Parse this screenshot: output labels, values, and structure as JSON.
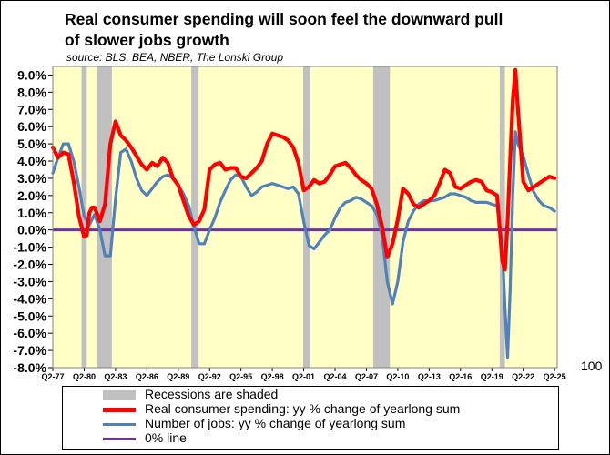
{
  "title_line1": "Real consumer spending will soon feel the downward pull",
  "title_line2": "of slower jobs growth",
  "source": "source: BLS, BEA, NBER, The Lonski Group",
  "side_number": "100",
  "colors": {
    "plot_bg": "#ffffc6",
    "recession": "#c0c0c0",
    "spending": "#ff0000",
    "jobs": "#4f81bd",
    "zero_line": "#7030a0"
  },
  "legend": {
    "recession": "Recessions are shaded",
    "spending": "Real consumer spending: yy % change of yearlong sum",
    "jobs": "Number of jobs: yy % change of yearlong sum",
    "zero": "0% line"
  },
  "chart_data": {
    "type": "line",
    "title": "Real consumer spending will soon feel the downward pull of slower jobs growth",
    "x_range": [
      1977.25,
      2025.5
    ],
    "ylim": [
      -8,
      9.5
    ],
    "yticks": [
      9,
      8,
      7,
      6,
      5,
      4,
      3,
      2,
      1,
      0,
      -1,
      -2,
      -3,
      -4,
      -5,
      -6,
      -7,
      -8
    ],
    "ytick_labels": [
      "9.0%",
      "8.0%",
      "7.0%",
      "6.0%",
      "5.0%",
      "4.0%",
      "3.0%",
      "2.0%",
      "1.0%",
      "0.0%",
      "-1.0%",
      "-2.0%",
      "-3.0%",
      "-4.0%",
      "-5.0%",
      "-6.0%",
      "-7.0%",
      "-8.0%"
    ],
    "xticks": [
      1977.25,
      1980.25,
      1983.25,
      1986.25,
      1989.25,
      1992.25,
      1995.25,
      1998.25,
      2001.25,
      2004.25,
      2007.25,
      2010.25,
      2013.25,
      2016.25,
      2019.25,
      2022.25,
      2025.25
    ],
    "xtick_labels": [
      "Q2-77",
      "Q2-80",
      "Q2-83",
      "Q2-86",
      "Q2-89",
      "Q2-92",
      "Q2-95",
      "Q2-98",
      "Q2-01",
      "Q2-04",
      "Q2-07",
      "Q2-10",
      "Q2-13",
      "Q2-16",
      "Q2-19",
      "Q2-22",
      "Q2-25"
    ],
    "recessions": [
      [
        1980.0,
        1980.5
      ],
      [
        1981.5,
        1982.9
      ],
      [
        1990.5,
        1991.2
      ],
      [
        2001.2,
        2001.9
      ],
      [
        2007.9,
        2009.5
      ],
      [
        2020.0,
        2020.5
      ]
    ],
    "series": [
      {
        "name": "Real consumer spending: yy % change of yearlong sum",
        "x": [
          1977.25,
          1977.75,
          1978.25,
          1978.75,
          1979.25,
          1979.75,
          1980.25,
          1980.5,
          1980.75,
          1981.0,
          1981.25,
          1981.75,
          1982.25,
          1982.75,
          1983.25,
          1983.75,
          1984.25,
          1984.75,
          1985.25,
          1985.75,
          1986.25,
          1986.75,
          1987.25,
          1987.75,
          1988.25,
          1988.75,
          1989.25,
          1989.75,
          1990.25,
          1990.75,
          1991.25,
          1991.75,
          1992.25,
          1992.75,
          1993.25,
          1993.75,
          1994.25,
          1994.75,
          1995.25,
          1995.75,
          1996.25,
          1996.75,
          1997.25,
          1997.75,
          1998.25,
          1998.75,
          1999.25,
          1999.75,
          2000.25,
          2000.75,
          2001.25,
          2001.75,
          2002.25,
          2002.75,
          2003.25,
          2003.75,
          2004.25,
          2004.75,
          2005.25,
          2005.75,
          2006.25,
          2006.75,
          2007.25,
          2007.75,
          2008.25,
          2008.75,
          2009.25,
          2009.75,
          2010.25,
          2010.75,
          2011.25,
          2011.75,
          2012.25,
          2012.75,
          2013.25,
          2013.75,
          2014.25,
          2014.75,
          2015.25,
          2015.75,
          2016.25,
          2016.75,
          2017.25,
          2017.75,
          2018.25,
          2018.75,
          2019.25,
          2019.75,
          2020.25,
          2020.5,
          2020.75,
          2021.0,
          2021.25,
          2021.5,
          2021.75,
          2022.25,
          2022.75,
          2023.25,
          2023.75,
          2024.25,
          2024.75,
          2025.25
        ],
        "values": [
          4.8,
          4.2,
          4.5,
          4.4,
          2.8,
          0.8,
          -0.4,
          -0.3,
          1.0,
          1.3,
          1.3,
          0.5,
          1.5,
          5.0,
          6.3,
          5.5,
          5.2,
          4.8,
          4.3,
          3.8,
          3.5,
          3.9,
          3.7,
          4.2,
          3.9,
          3.0,
          2.6,
          1.7,
          0.8,
          0.3,
          0.5,
          1.2,
          3.5,
          3.8,
          3.9,
          3.5,
          3.6,
          3.6,
          3.1,
          3.0,
          3.3,
          3.6,
          4.0,
          5.0,
          5.6,
          5.5,
          5.4,
          5.2,
          4.8,
          3.9,
          2.3,
          2.5,
          2.9,
          2.7,
          2.8,
          3.2,
          3.7,
          3.8,
          3.9,
          3.6,
          3.2,
          2.9,
          2.7,
          2.4,
          1.5,
          0.2,
          -1.6,
          -0.8,
          0.6,
          2.4,
          2.1,
          1.5,
          1.3,
          1.5,
          1.7,
          2.0,
          2.7,
          3.5,
          3.3,
          2.5,
          2.4,
          2.6,
          2.8,
          2.9,
          2.8,
          2.3,
          2.2,
          2.0,
          -1.8,
          -2.3,
          0.5,
          4.0,
          7.5,
          9.3,
          7.0,
          2.8,
          2.3,
          2.5,
          2.7,
          2.9,
          3.1,
          3.0
        ]
      },
      {
        "name": "Number of jobs: yy % change of yearlong sum",
        "x": [
          1977.25,
          1977.75,
          1978.25,
          1978.75,
          1979.25,
          1979.75,
          1980.25,
          1980.75,
          1981.25,
          1981.75,
          1982.25,
          1982.75,
          1983.25,
          1983.75,
          1984.25,
          1984.75,
          1985.25,
          1985.75,
          1986.25,
          1986.75,
          1987.25,
          1987.75,
          1988.25,
          1988.75,
          1989.25,
          1989.75,
          1990.25,
          1990.75,
          1991.25,
          1991.75,
          1992.25,
          1992.75,
          1993.25,
          1993.75,
          1994.25,
          1994.75,
          1995.25,
          1995.75,
          1996.25,
          1996.75,
          1997.25,
          1997.75,
          1998.25,
          1998.75,
          1999.25,
          1999.75,
          2000.25,
          2000.75,
          2001.25,
          2001.75,
          2002.25,
          2002.75,
          2003.25,
          2003.75,
          2004.25,
          2004.75,
          2005.25,
          2005.75,
          2006.25,
          2006.75,
          2007.25,
          2007.75,
          2008.25,
          2008.75,
          2009.25,
          2009.75,
          2010.25,
          2010.75,
          2011.25,
          2011.75,
          2012.25,
          2012.75,
          2013.25,
          2013.75,
          2014.25,
          2014.75,
          2015.25,
          2015.75,
          2016.25,
          2016.75,
          2017.25,
          2017.75,
          2018.25,
          2018.75,
          2019.25,
          2019.75,
          2020.25,
          2020.5,
          2020.75,
          2021.0,
          2021.25,
          2021.5,
          2021.75,
          2022.25,
          2022.75,
          2023.25,
          2023.75,
          2024.25,
          2024.75,
          2025.25
        ],
        "values": [
          3.3,
          4.2,
          5.0,
          5.0,
          4.0,
          2.5,
          0.8,
          0.3,
          0.9,
          0.0,
          -1.5,
          -1.5,
          1.8,
          4.5,
          4.7,
          4.0,
          3.0,
          2.3,
          2.0,
          2.4,
          2.8,
          3.1,
          3.2,
          3.0,
          2.6,
          2.1,
          1.4,
          0.2,
          -0.8,
          -0.8,
          0.0,
          0.7,
          1.6,
          2.3,
          2.9,
          3.2,
          3.1,
          2.5,
          2.0,
          2.2,
          2.5,
          2.6,
          2.7,
          2.6,
          2.5,
          2.4,
          2.5,
          2.1,
          0.5,
          -0.9,
          -1.1,
          -0.7,
          -0.3,
          0.0,
          0.7,
          1.3,
          1.6,
          1.7,
          1.9,
          1.8,
          1.6,
          1.4,
          0.9,
          -0.3,
          -3.0,
          -4.3,
          -3.0,
          -0.7,
          0.5,
          1.1,
          1.5,
          1.7,
          1.7,
          1.7,
          1.8,
          1.9,
          2.1,
          2.1,
          2.0,
          1.9,
          1.7,
          1.6,
          1.6,
          1.6,
          1.5,
          1.4,
          -1.0,
          -4.5,
          -7.4,
          -3.5,
          2.0,
          5.7,
          5.0,
          4.3,
          3.2,
          2.2,
          1.7,
          1.4,
          1.3,
          1.1
        ]
      },
      {
        "name": "0% line",
        "x": [
          1977.25,
          2025.5
        ],
        "values": [
          0,
          0
        ]
      }
    ]
  }
}
